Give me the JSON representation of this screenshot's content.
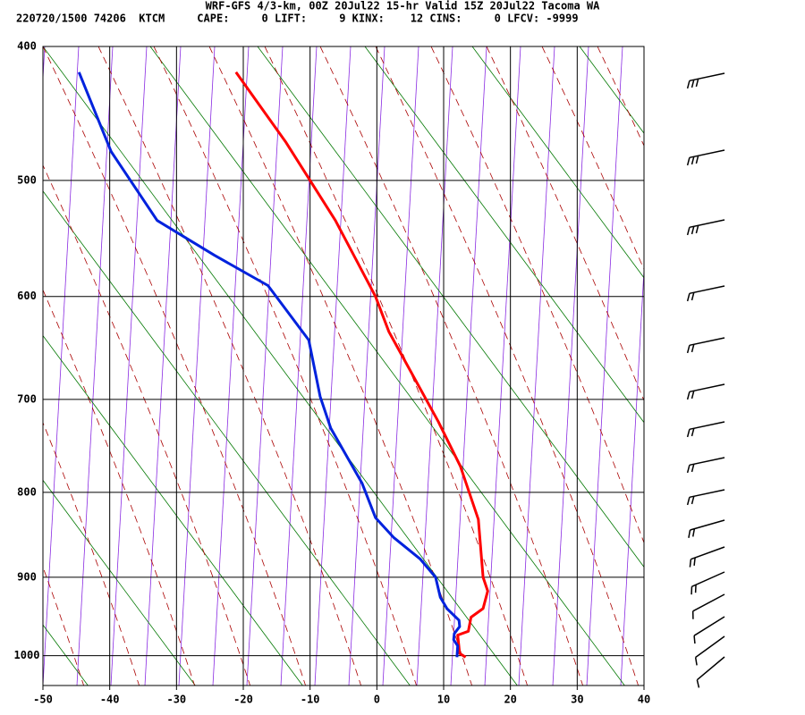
{
  "chart_data": {
    "type": "line",
    "title": "WRF-GFS 4/3-km, 00Z 20Jul22 15-hr Valid 15Z 20Jul22 Tacoma WA",
    "subtitle": "220720/1500 74206  KTCM     CAPE:     0 LIFT:     9 KINX:    12 CINS:     0 LFCV: -9999",
    "xlim": [
      -50,
      40
    ],
    "xticks": [
      -50,
      -40,
      -30,
      -20,
      -10,
      0,
      10,
      20,
      30,
      40
    ],
    "ylim": [
      400,
      1040
    ],
    "yticks": [
      400,
      500,
      600,
      700,
      800,
      900,
      1000
    ],
    "grid": true,
    "series": [
      {
        "color": "#ff0000",
        "x": [
          -21.1,
          -13.6,
          -6.2,
          -0.2,
          1.8,
          9.2,
          12.5,
          15.2,
          15.9,
          16.6,
          15.9,
          14.1,
          13.7,
          12.1,
          12.4,
          13.3
        ],
        "values": [
          418,
          470,
          533,
          600,
          633,
          723,
          771,
          831,
          900,
          917,
          939,
          950,
          968,
          973,
          997,
          1002
        ]
      },
      {
        "color": "#0022dd",
        "x": [
          -44.6,
          -39.8,
          -32.9,
          -24.3,
          -16.3,
          -10.2,
          -8.5,
          -6.9,
          -2.2,
          -0.2,
          2.5,
          6.5,
          8.8,
          9.5,
          10.5,
          12.3,
          12.4,
          11.6,
          11.5,
          12.1,
          12.0
        ],
        "values": [
          418,
          477,
          533,
          563,
          590,
          641,
          697,
          730,
          790,
          829,
          852,
          878,
          900,
          925,
          939,
          954,
          962,
          971,
          979,
          987,
          1002
        ]
      }
    ]
  }
}
